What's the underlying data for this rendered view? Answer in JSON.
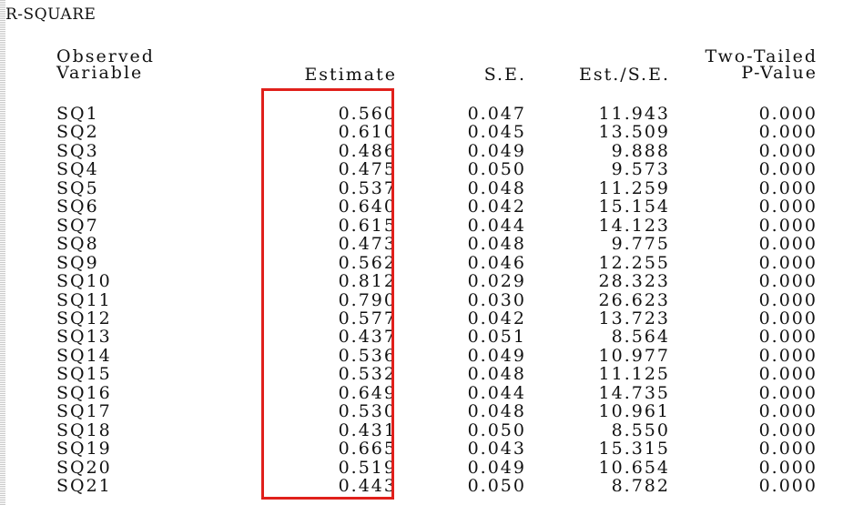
{
  "section_title": "R-SQUARE",
  "headers": {
    "observed_line1": "Observed",
    "observed_line2": "Variable",
    "estimate": "Estimate",
    "se": "S.E.",
    "ratio": "Est./S.E.",
    "pvalue_line1": "Two-Tailed",
    "pvalue_line2": "P-Value"
  },
  "rows": [
    {
      "variable": "SQ1",
      "estimate": "0.560",
      "se": "0.047",
      "ratio": "11.943",
      "pvalue": "0.000"
    },
    {
      "variable": "SQ2",
      "estimate": "0.610",
      "se": "0.045",
      "ratio": "13.509",
      "pvalue": "0.000"
    },
    {
      "variable": "SQ3",
      "estimate": "0.486",
      "se": "0.049",
      "ratio": "9.888",
      "pvalue": "0.000"
    },
    {
      "variable": "SQ4",
      "estimate": "0.475",
      "se": "0.050",
      "ratio": "9.573",
      "pvalue": "0.000"
    },
    {
      "variable": "SQ5",
      "estimate": "0.537",
      "se": "0.048",
      "ratio": "11.259",
      "pvalue": "0.000"
    },
    {
      "variable": "SQ6",
      "estimate": "0.640",
      "se": "0.042",
      "ratio": "15.154",
      "pvalue": "0.000"
    },
    {
      "variable": "SQ7",
      "estimate": "0.615",
      "se": "0.044",
      "ratio": "14.123",
      "pvalue": "0.000"
    },
    {
      "variable": "SQ8",
      "estimate": "0.473",
      "se": "0.048",
      "ratio": "9.775",
      "pvalue": "0.000"
    },
    {
      "variable": "SQ9",
      "estimate": "0.562",
      "se": "0.046",
      "ratio": "12.255",
      "pvalue": "0.000"
    },
    {
      "variable": "SQ10",
      "estimate": "0.812",
      "se": "0.029",
      "ratio": "28.323",
      "pvalue": "0.000"
    },
    {
      "variable": "SQ11",
      "estimate": "0.790",
      "se": "0.030",
      "ratio": "26.623",
      "pvalue": "0.000"
    },
    {
      "variable": "SQ12",
      "estimate": "0.577",
      "se": "0.042",
      "ratio": "13.723",
      "pvalue": "0.000"
    },
    {
      "variable": "SQ13",
      "estimate": "0.437",
      "se": "0.051",
      "ratio": "8.564",
      "pvalue": "0.000"
    },
    {
      "variable": "SQ14",
      "estimate": "0.536",
      "se": "0.049",
      "ratio": "10.977",
      "pvalue": "0.000"
    },
    {
      "variable": "SQ15",
      "estimate": "0.532",
      "se": "0.048",
      "ratio": "11.125",
      "pvalue": "0.000"
    },
    {
      "variable": "SQ16",
      "estimate": "0.649",
      "se": "0.044",
      "ratio": "14.735",
      "pvalue": "0.000"
    },
    {
      "variable": "SQ17",
      "estimate": "0.530",
      "se": "0.048",
      "ratio": "10.961",
      "pvalue": "0.000"
    },
    {
      "variable": "SQ18",
      "estimate": "0.431",
      "se": "0.050",
      "ratio": "8.550",
      "pvalue": "0.000"
    },
    {
      "variable": "SQ19",
      "estimate": "0.665",
      "se": "0.043",
      "ratio": "15.315",
      "pvalue": "0.000"
    },
    {
      "variable": "SQ20",
      "estimate": "0.519",
      "se": "0.049",
      "ratio": "10.654",
      "pvalue": "0.000"
    },
    {
      "variable": "SQ21",
      "estimate": "0.443",
      "se": "0.050",
      "ratio": "8.782",
      "pvalue": "0.000"
    }
  ],
  "highlight": {
    "color": "#e0201b",
    "column": "estimate"
  }
}
